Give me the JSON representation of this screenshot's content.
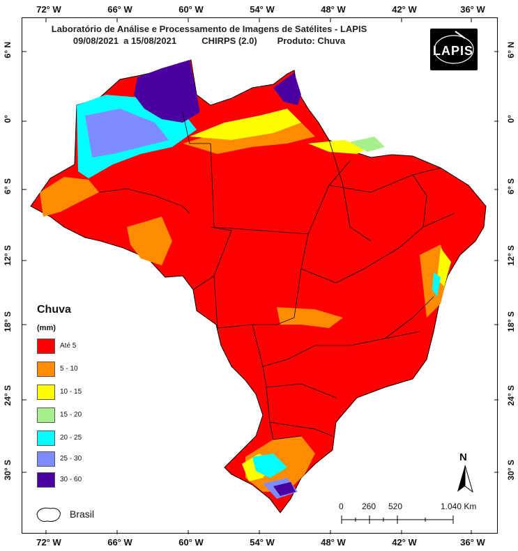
{
  "title": {
    "line1": "Laboratório de Análise e Processamento de Imagens de Satélites - LAPIS",
    "line2": "09/08/2021  a 15/08/2021          CHIRPS (2.0)        Produto: Chuva"
  },
  "logo": {
    "text": "LAPIS"
  },
  "axes": {
    "lon_ticks": [
      "72° W",
      "66° W",
      "60° W",
      "54° W",
      "48° W",
      "42° W",
      "36° W"
    ],
    "lat_ticks": [
      "6° N",
      "0°",
      "6° S",
      "12° S",
      "18° S",
      "24° S",
      "30° S"
    ]
  },
  "legend": {
    "title": "Chuva",
    "unit": "(mm)",
    "items": [
      {
        "label": "Até 5",
        "color": "#ff0000"
      },
      {
        "label": "5 - 10",
        "color": "#ff8c00"
      },
      {
        "label": "10 - 15",
        "color": "#ffff00"
      },
      {
        "label": "15 - 20",
        "color": "#a8f08c"
      },
      {
        "label": "20 - 25",
        "color": "#00ffff"
      },
      {
        "label": "25 - 30",
        "color": "#7f8cff"
      },
      {
        "label": "30 - 60",
        "color": "#4b00a0"
      }
    ],
    "outline_label": "Brasil"
  },
  "scale_bar": {
    "labels": [
      "0",
      "260",
      "520",
      "1.040 Km"
    ]
  },
  "north_arrow": {
    "label": "N"
  }
}
